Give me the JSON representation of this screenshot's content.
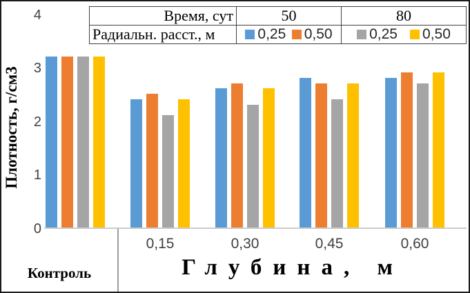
{
  "colors": {
    "series_blue": "#5B9BD5",
    "series_orange": "#ED7D31",
    "series_gray": "#A5A5A5",
    "series_yellow": "#FFC000",
    "axis_line": "#CBCBCB",
    "divider": "#9B9B9B"
  },
  "y_axis": {
    "title": "Плотность, г/см3",
    "ticks": [
      "4",
      "3",
      "2",
      "1",
      "0"
    ]
  },
  "x_axis": {
    "control_label": "Контроль",
    "title": "Глубина, м",
    "tick_labels": [
      "0,15",
      "0,30",
      "0,45",
      "0,60"
    ]
  },
  "legend_table": {
    "row1_label": "Время, сут",
    "row1_values": [
      "50",
      "80"
    ],
    "row2_label": "Радиальн. расст., м",
    "entries": [
      {
        "label": "0,25",
        "color": "#5B9BD5",
        "time": "50"
      },
      {
        "label": "0,50",
        "color": "#ED7D31",
        "time": "50"
      },
      {
        "label": "0,25",
        "color": "#A5A5A5",
        "time": "80"
      },
      {
        "label": "0,50",
        "color": "#FFC000",
        "time": "80"
      }
    ]
  },
  "chart_data": {
    "type": "bar",
    "categories": [
      "Контроль",
      "0,15",
      "0,30",
      "0,45",
      "0,60"
    ],
    "series": [
      {
        "name": "Время 50 сут, радиальн. расст. 0,25 м",
        "color": "#5B9BD5",
        "values": [
          3.2,
          2.4,
          2.6,
          2.8,
          2.8
        ]
      },
      {
        "name": "Время 50 сут, радиальн. расст. 0,50 м",
        "color": "#ED7D31",
        "values": [
          3.2,
          2.5,
          2.7,
          2.7,
          2.9
        ]
      },
      {
        "name": "Время 80 сут, радиальн. расст. 0,25 м",
        "color": "#A5A5A5",
        "values": [
          3.2,
          2.1,
          2.3,
          2.4,
          2.7
        ]
      },
      {
        "name": "Время 80 сут, радиальн. расст. 0,50 м",
        "color": "#FFC000",
        "values": [
          3.2,
          2.4,
          2.6,
          2.7,
          2.9
        ]
      }
    ],
    "title": "",
    "xlabel": "Глубина, м",
    "ylabel": "Плотность, г/см3",
    "ylim": [
      0,
      4
    ],
    "grid": false,
    "legend_position": "top-table"
  }
}
